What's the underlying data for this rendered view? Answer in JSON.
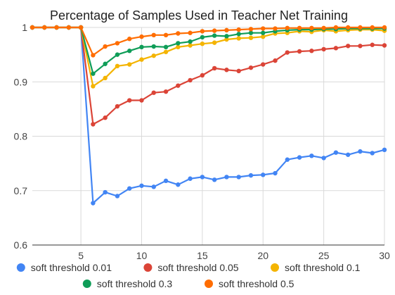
{
  "chart_data": {
    "type": "line",
    "title": "Percentage of Samples Used in Teacher Net Training",
    "xlim": [
      1,
      30
    ],
    "ylim": [
      0.6,
      1
    ],
    "x_ticks": [
      5,
      10,
      15,
      20,
      25,
      30
    ],
    "y_ticks": [
      0.6,
      0.7,
      0.8,
      0.9,
      1
    ],
    "y_tick_labels": [
      "0.6",
      "0.7",
      "0.8",
      "0.9",
      "1"
    ],
    "grid": true,
    "legend_position": "bottom",
    "x": [
      1,
      2,
      3,
      4,
      5,
      6,
      7,
      8,
      9,
      10,
      11,
      12,
      13,
      14,
      15,
      16,
      17,
      18,
      19,
      20,
      21,
      22,
      23,
      24,
      25,
      26,
      27,
      28,
      29,
      30
    ],
    "series": [
      {
        "name": "soft threshold 0.01",
        "color": "#4285F4",
        "values": [
          1,
          1,
          1,
          1,
          1,
          0.677,
          0.697,
          0.69,
          0.704,
          0.709,
          0.707,
          0.718,
          0.711,
          0.722,
          0.725,
          0.72,
          0.725,
          0.725,
          0.728,
          0.729,
          0.732,
          0.757,
          0.761,
          0.764,
          0.76,
          0.77,
          0.766,
          0.772,
          0.769,
          0.775
        ]
      },
      {
        "name": "soft threshold 0.05",
        "color": "#DB4437",
        "values": [
          1,
          1,
          1,
          1,
          1,
          0.822,
          0.834,
          0.855,
          0.866,
          0.866,
          0.88,
          0.882,
          0.893,
          0.903,
          0.912,
          0.925,
          0.922,
          0.92,
          0.926,
          0.932,
          0.939,
          0.954,
          0.956,
          0.957,
          0.96,
          0.962,
          0.966,
          0.966,
          0.968,
          0.967
        ]
      },
      {
        "name": "soft threshold 0.1",
        "color": "#F4B400",
        "values": [
          1,
          1,
          1,
          1,
          1,
          0.892,
          0.907,
          0.929,
          0.932,
          0.941,
          0.948,
          0.955,
          0.964,
          0.967,
          0.97,
          0.972,
          0.978,
          0.98,
          0.981,
          0.983,
          0.989,
          0.99,
          0.993,
          0.992,
          0.995,
          0.993,
          0.995,
          0.996,
          0.996,
          0.994
        ]
      },
      {
        "name": "soft threshold 0.3",
        "color": "#0F9D58",
        "values": [
          1,
          1,
          1,
          1,
          1,
          0.915,
          0.933,
          0.95,
          0.957,
          0.964,
          0.965,
          0.964,
          0.971,
          0.974,
          0.982,
          0.985,
          0.984,
          0.988,
          0.99,
          0.99,
          0.993,
          0.995,
          0.996,
          0.996,
          0.997,
          0.997,
          0.998,
          0.998,
          0.998,
          0.998
        ]
      },
      {
        "name": "soft threshold 0.5",
        "color": "#FF6D01",
        "values": [
          1,
          1,
          1,
          1,
          1,
          0.949,
          0.965,
          0.971,
          0.979,
          0.983,
          0.986,
          0.986,
          0.989,
          0.99,
          0.993,
          0.994,
          0.995,
          0.996,
          0.997,
          0.998,
          0.998,
          0.999,
          0.999,
          0.999,
          0.999,
          1,
          1,
          1,
          1,
          1
        ]
      }
    ]
  }
}
